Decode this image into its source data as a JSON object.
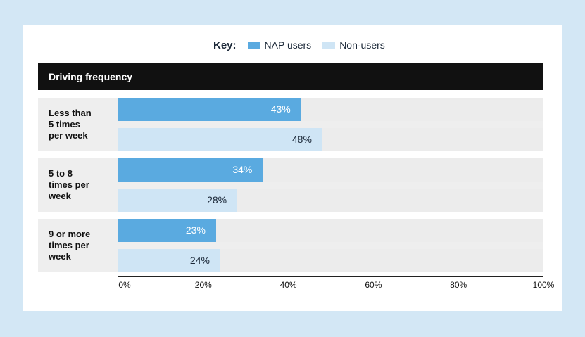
{
  "legend": {
    "key_label": "Key:",
    "items": [
      {
        "label": "NAP users",
        "color": "#5aaae0"
      },
      {
        "label": "Non-users",
        "color": "#cfe5f5"
      }
    ]
  },
  "chart_data": {
    "type": "bar",
    "orientation": "horizontal",
    "title": "Driving frequency",
    "categories": [
      "Less than 5 times per week",
      "5 to 8 times per week",
      "9 or more times per week"
    ],
    "category_lines": [
      [
        "Less than",
        "5 times",
        "per week"
      ],
      [
        "5 to 8",
        "times per",
        "week"
      ],
      [
        "9 or more",
        "times per",
        "week"
      ]
    ],
    "series": [
      {
        "name": "NAP users",
        "color": "#5aaae0",
        "values": [
          43,
          34,
          23
        ],
        "labels": [
          "43%",
          "34%",
          "23%"
        ],
        "label_color": "#ffffff"
      },
      {
        "name": "Non-users",
        "color": "#cfe5f5",
        "values": [
          48,
          28,
          24
        ],
        "labels": [
          "48%",
          "28%",
          "24%"
        ],
        "label_color": "#1b2838"
      }
    ],
    "xlim": [
      0,
      100
    ],
    "ticks": [
      "0%",
      "20%",
      "40%",
      "60%",
      "80%",
      "100%"
    ],
    "tick_values": [
      0,
      20,
      40,
      60,
      80,
      100
    ]
  }
}
